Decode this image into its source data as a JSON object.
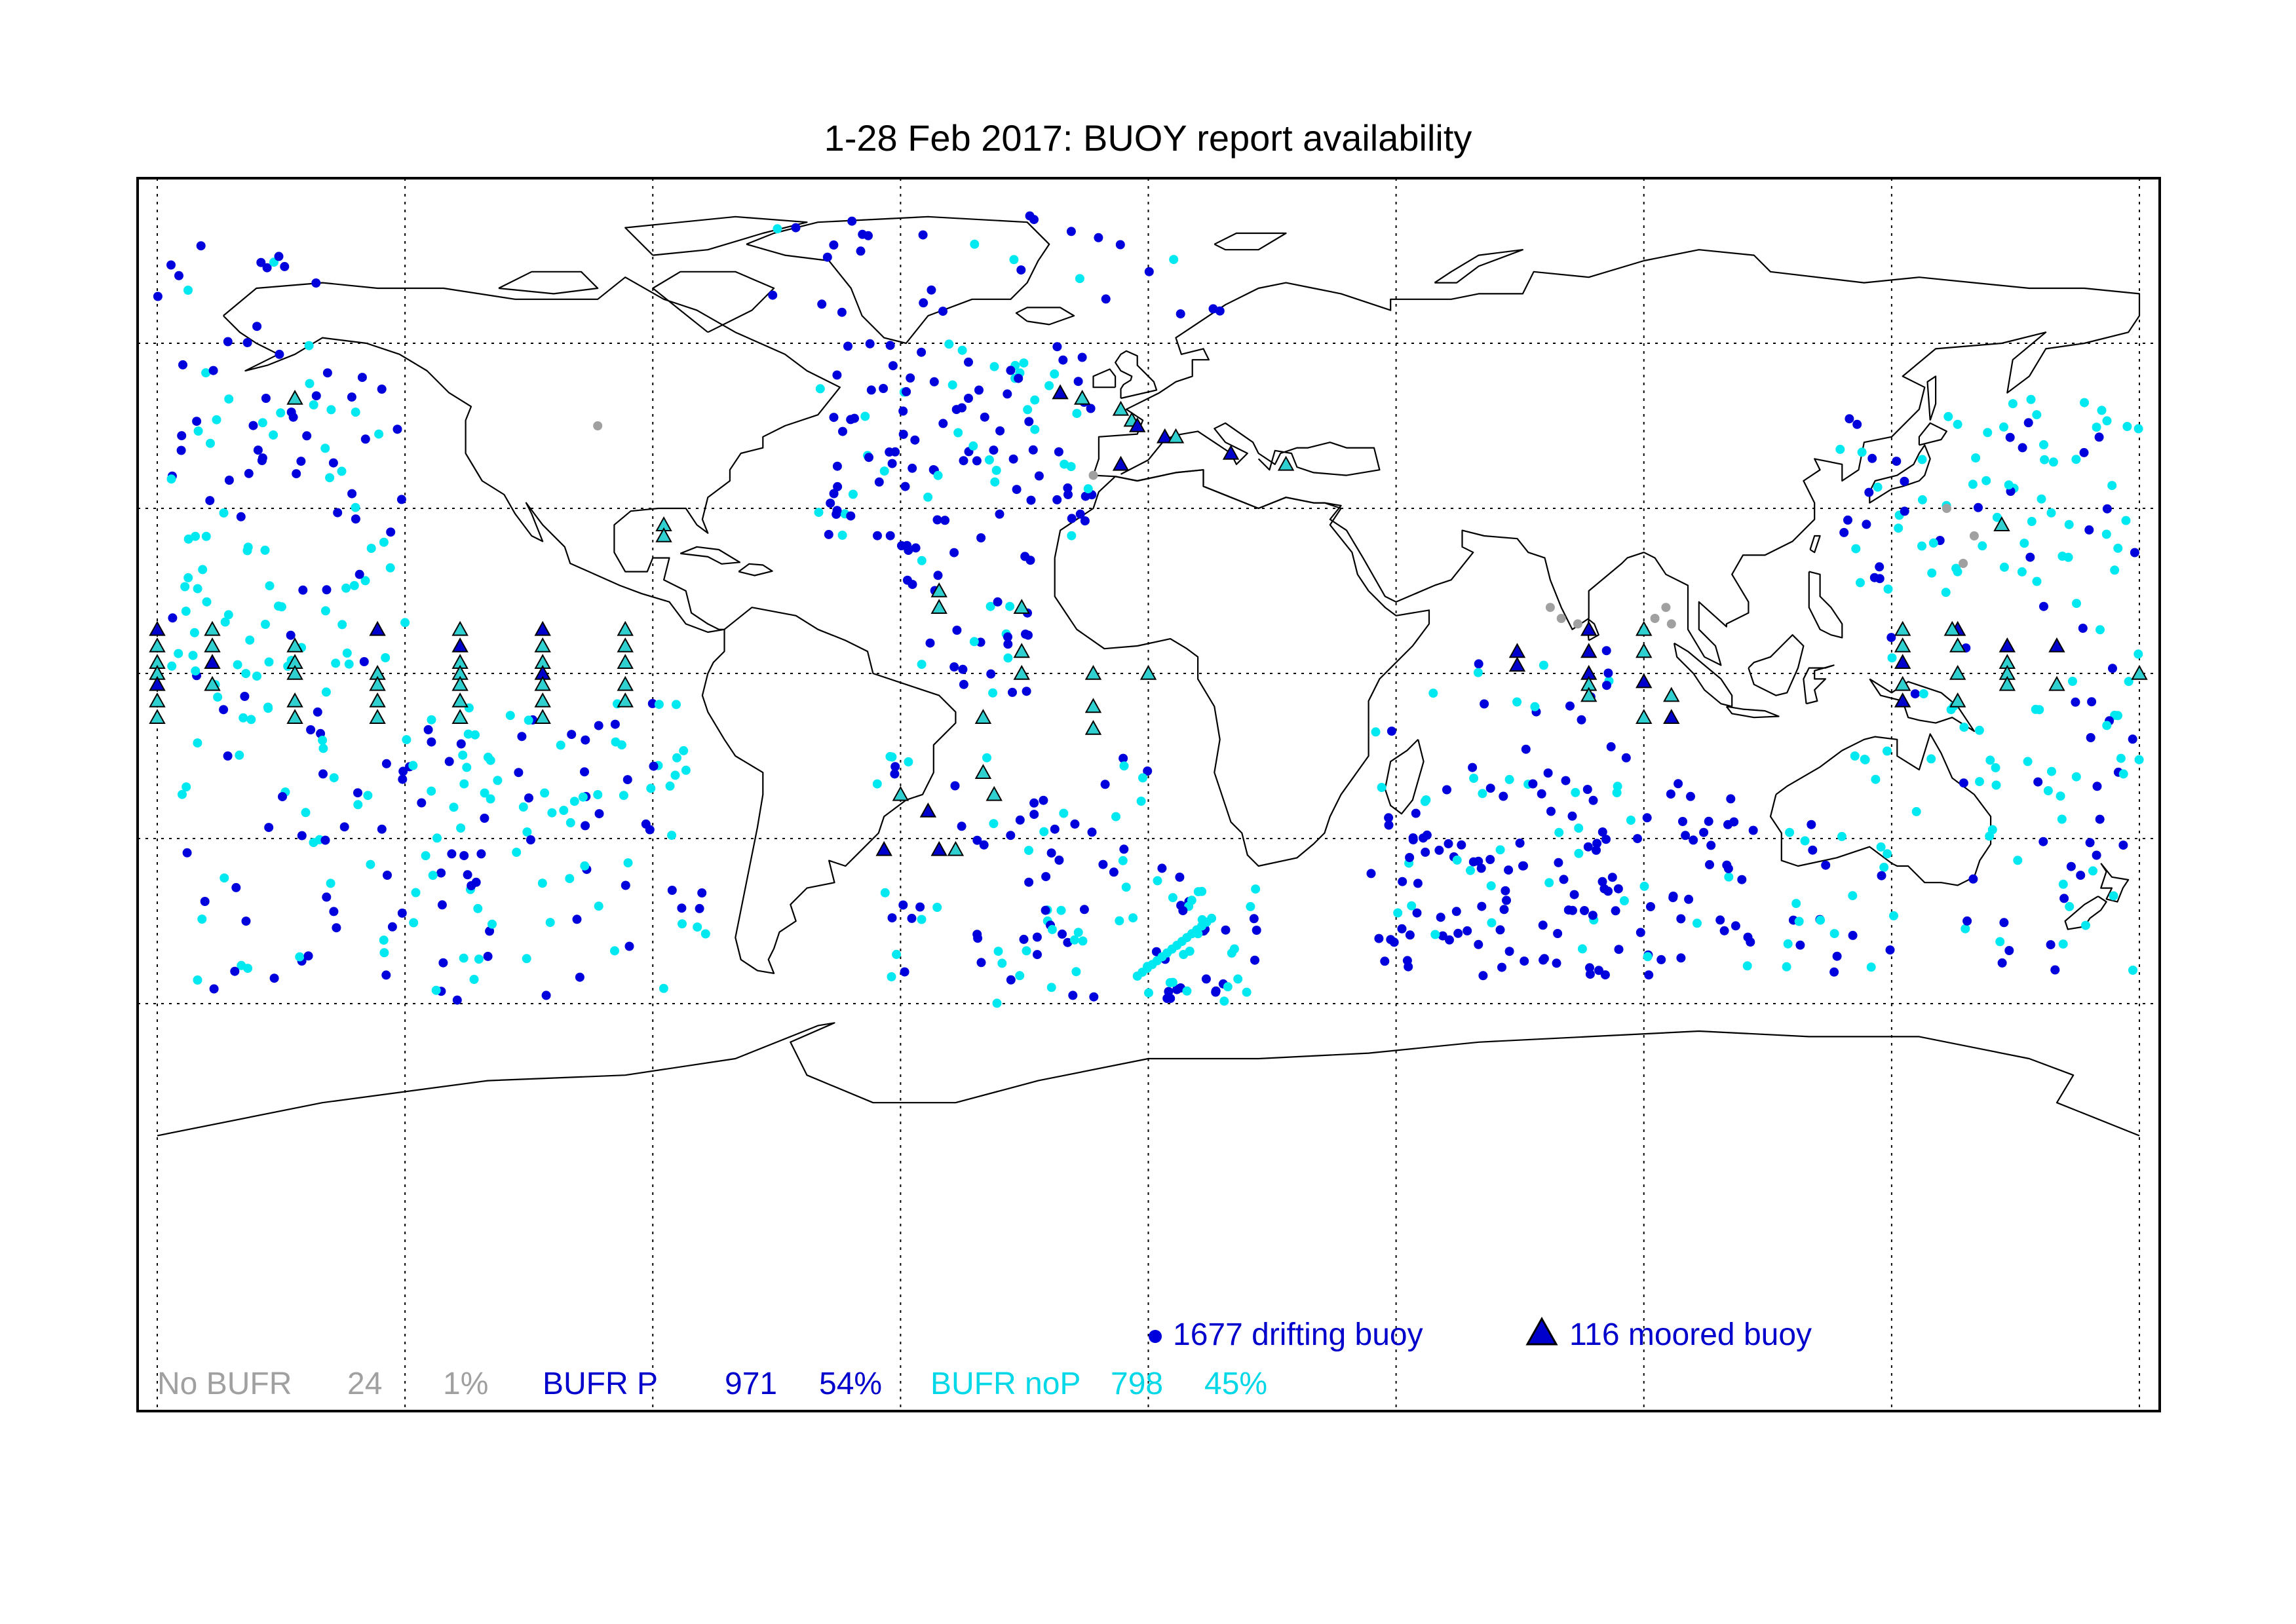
{
  "title": "1-28 Feb 2017: BUOY report availability",
  "colors": {
    "no_bufr": "#a0a0a0",
    "bufr_p": "#0000dd",
    "bufr_nop": "#00e8f0",
    "moored_fill_p": "#0000cc",
    "moored_fill_nop": "#30d0d0",
    "land_line": "#000000",
    "grid": "#000000"
  },
  "map": {
    "projection": "equirectangular",
    "lon_range": [
      -180,
      180
    ],
    "lat_range": [
      -90,
      90
    ],
    "grid_lon_step": 45,
    "grid_lat_step": 30,
    "grid_style": "dotted"
  },
  "legend": {
    "drifting_label": "1677 drifting buoy",
    "moored_label": "116 moored buoy"
  },
  "stats": {
    "no_bufr": {
      "label": "No BUFR",
      "count": "24",
      "pct": "1%"
    },
    "bufr_p": {
      "label": "BUFR P",
      "count": "971",
      "pct": "54%"
    },
    "bufr_nop": {
      "label": "BUFR noP",
      "count": "798",
      "pct": "45%"
    }
  },
  "icons": {
    "drifting": "circle-marker",
    "moored": "triangle-marker"
  }
}
